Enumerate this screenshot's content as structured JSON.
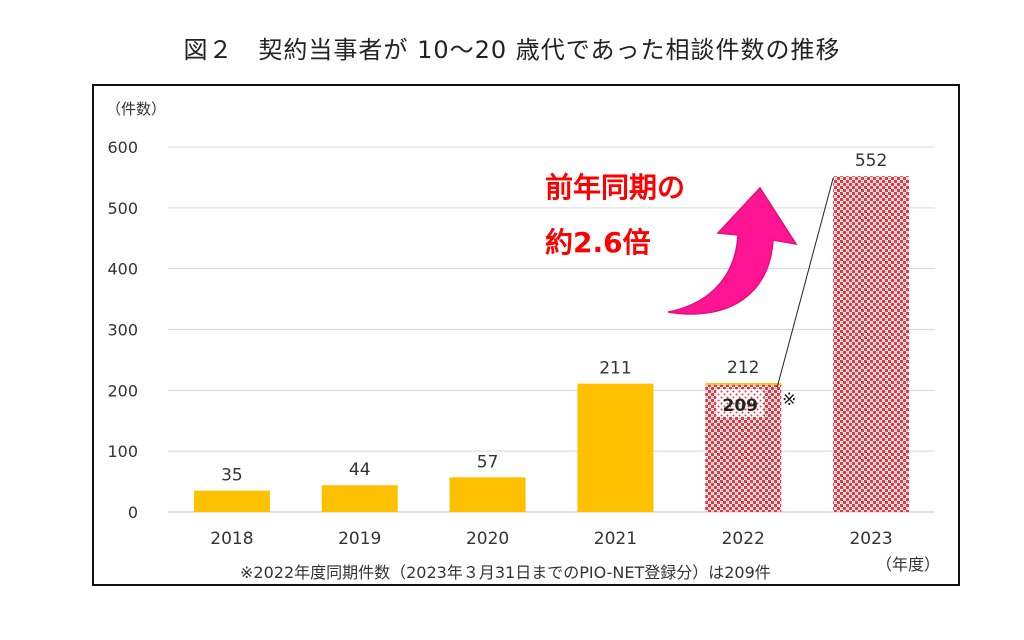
{
  "title": "図２　契約当事者が 10〜20 歳代であった相談件数の推移",
  "colors": {
    "bar": "#ffc000",
    "highlight": "#e8353f",
    "grid": "#d9d9d9",
    "arrow": "#ff1493",
    "callout_text": "#ff0000"
  },
  "chart_data": {
    "type": "bar",
    "title": "図２　契約当事者が 10〜20 歳代であった相談件数の推移",
    "ylabel": "（件数）",
    "xlabel": "（年度）",
    "ylim": [
      0,
      600
    ],
    "yticks": [
      0,
      100,
      200,
      300,
      400,
      500,
      600
    ],
    "grid": true,
    "categories": [
      "2018",
      "2019",
      "2020",
      "2021",
      "2022",
      "2023"
    ],
    "values": [
      35,
      44,
      57,
      211,
      212,
      552
    ],
    "data_labels": [
      "35",
      "44",
      "57",
      "211",
      "212",
      "552"
    ],
    "patterned_categories": [
      "2022",
      "2023"
    ],
    "inset": {
      "category": "2022",
      "value": 209,
      "label": "209",
      "mark": "※"
    },
    "annotation": {
      "line1": "前年同期の",
      "line2": "約2.6倍"
    },
    "footnote": "※2022年度同期件数（2023年３月31日までのPIO-NET登録分）は209件"
  }
}
